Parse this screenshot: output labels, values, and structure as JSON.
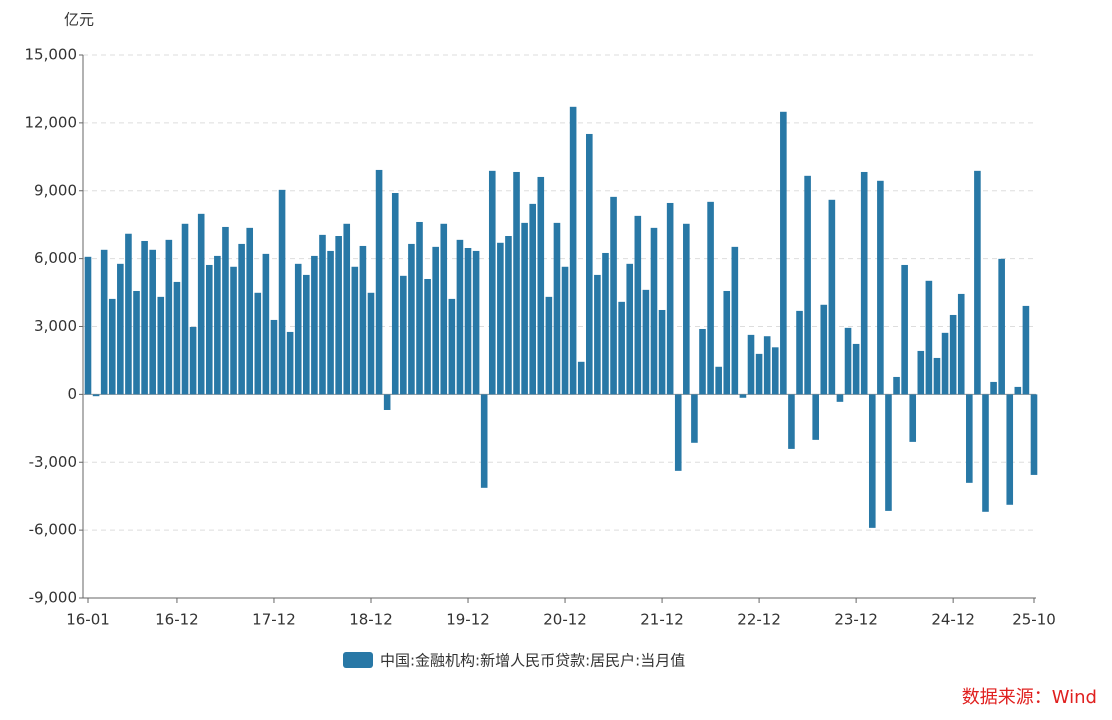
{
  "chart_data": {
    "type": "bar",
    "unit": "亿元",
    "source": "数据来源：Wind",
    "categories": [
      "16-01",
      null,
      null,
      null,
      null,
      null,
      null,
      null,
      null,
      null,
      null,
      "16-12",
      null,
      null,
      null,
      null,
      null,
      null,
      null,
      null,
      null,
      null,
      null,
      "17-12",
      null,
      null,
      null,
      null,
      null,
      null,
      null,
      null,
      null,
      null,
      null,
      "18-12",
      null,
      null,
      null,
      null,
      null,
      null,
      null,
      null,
      null,
      null,
      null,
      "19-12",
      null,
      null,
      null,
      null,
      null,
      null,
      null,
      null,
      null,
      null,
      null,
      "20-12",
      null,
      null,
      null,
      null,
      null,
      null,
      null,
      null,
      null,
      null,
      null,
      "21-12",
      null,
      null,
      null,
      null,
      null,
      null,
      null,
      null,
      null,
      null,
      null,
      "22-12",
      null,
      null,
      null,
      null,
      null,
      null,
      null,
      null,
      null,
      null,
      null,
      "23-12",
      null,
      null,
      null,
      null,
      null,
      null,
      null,
      null,
      null,
      null,
      null,
      "24-12",
      null,
      null,
      null,
      null,
      null,
      null,
      null,
      null,
      null,
      "25-10"
    ],
    "series": [
      {
        "name": "中国:金融机构:新增人民币贷款:居民户:当月值",
        "color": "#2878a6",
        "values": [
          6080,
          -80,
          6390,
          4220,
          5770,
          7100,
          4570,
          6780,
          6390,
          4310,
          6830,
          4970,
          7540,
          2980,
          7980,
          5720,
          6120,
          7400,
          5640,
          6650,
          7360,
          4490,
          6210,
          3290,
          9040,
          2760,
          5770,
          5280,
          6120,
          7050,
          6340,
          7000,
          7540,
          5640,
          6560,
          4490,
          9920,
          -690,
          8900,
          5240,
          6650,
          7620,
          5100,
          6520,
          7540,
          4220,
          6830,
          6470,
          6340,
          -4130,
          9880,
          6700,
          7000,
          9830,
          7580,
          8420,
          9610,
          4310,
          7580,
          5640,
          12710,
          1440,
          11510,
          5280,
          6250,
          8730,
          4090,
          5770,
          7890,
          4620,
          7360,
          3730,
          8460,
          -3380,
          7540,
          -2140,
          2890,
          8510,
          1220,
          4570,
          6520,
          -150,
          2630,
          1790,
          2570,
          2080,
          12490,
          -2410,
          3690,
          9660,
          -2010,
          3960,
          8600,
          -330,
          2940,
          2230,
          9830,
          -5900,
          9440,
          -5150,
          770,
          5720,
          -2100,
          1920,
          5020,
          1610,
          2720,
          3510,
          4440,
          -3910,
          9880,
          -5190,
          550,
          5990,
          -4880,
          330,
          3910,
          -3560
        ]
      }
    ],
    "ylim": [
      -9000,
      15000
    ],
    "yticks": [
      {
        "value": -9000,
        "label": "-9,000"
      },
      {
        "value": -6000,
        "label": "-6,000"
      },
      {
        "value": -3000,
        "label": "-3,000"
      },
      0,
      {
        "value": 3000,
        "label": "3,000"
      },
      {
        "value": 6000,
        "label": "6,000"
      },
      {
        "value": 9000,
        "label": "9,000"
      },
      {
        "value": 12000,
        "label": "12,000"
      },
      {
        "value": 15000,
        "label": "15,000"
      }
    ],
    "grid": true
  }
}
